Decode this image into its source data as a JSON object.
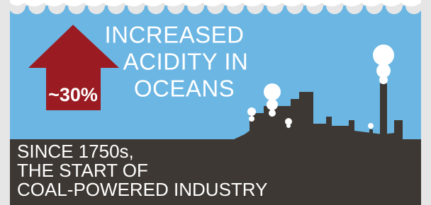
{
  "headline": {
    "lines": [
      "INCREASED",
      "ACIDITY IN",
      "OCEANS"
    ]
  },
  "arrow": {
    "label": "~30%"
  },
  "caption": {
    "lines": [
      "SINCE 1750s,",
      "THE START OF",
      "COAL-POWERED INDUSTRY"
    ]
  }
}
